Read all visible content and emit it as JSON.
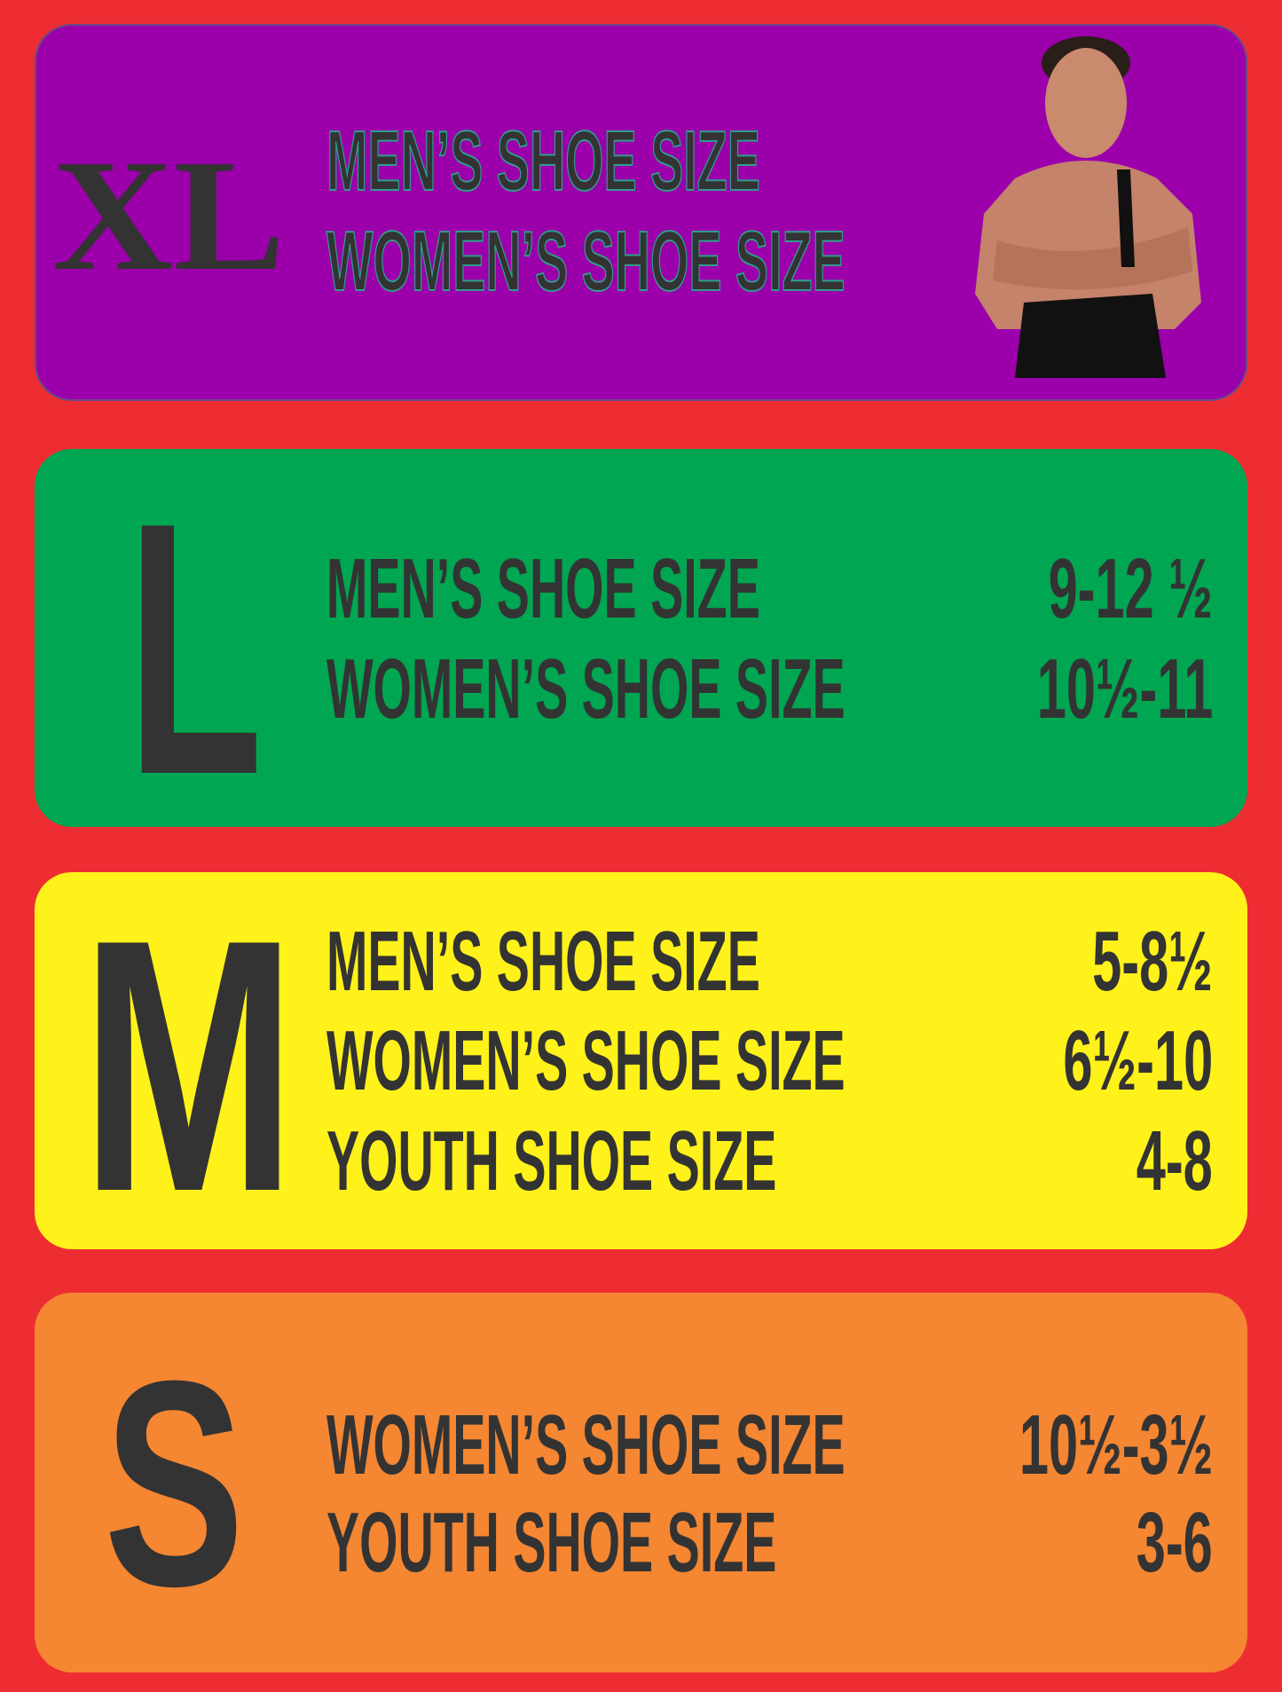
{
  "colors": {
    "background": "#ed2d32",
    "xl": "#9b00aa",
    "l": "#00a651",
    "m": "#fff21a",
    "s": "#f58632",
    "text": "#333333"
  },
  "sizes": [
    {
      "size": "XL",
      "rows": [
        {
          "label": "MEN’S SHOE SIZE",
          "value": ""
        },
        {
          "label": "WOMEN’S SHOE SIZE",
          "value": ""
        }
      ]
    },
    {
      "size": "L",
      "rows": [
        {
          "label": "MEN’S SHOE SIZE",
          "value": "9-12 ½"
        },
        {
          "label": "WOMEN’S SHOE SIZE",
          "value": "10½-11"
        }
      ]
    },
    {
      "size": "M",
      "rows": [
        {
          "label": "MEN’S SHOE SIZE",
          "value": "5-8½"
        },
        {
          "label": "WOMEN’S SHOE SIZE",
          "value": "6½-10"
        },
        {
          "label": "YOUTH SHOE SIZE",
          "value": "4-8"
        }
      ]
    },
    {
      "size": "S",
      "rows": [
        {
          "label": "WOMEN’S SHOE SIZE",
          "value": "10½-3½"
        },
        {
          "label": "YOUTH SHOE SIZE",
          "value": "3-6"
        }
      ]
    }
  ]
}
